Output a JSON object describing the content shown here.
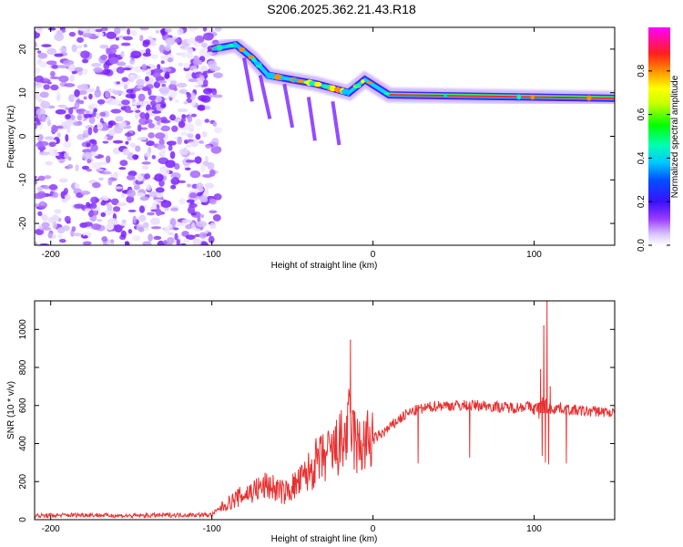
{
  "title": "S206.2025.362.21.43.R18",
  "chart_data": [
    {
      "type": "heatmap",
      "name": "spectrogram",
      "xlabel": "Height of straight line (km)",
      "ylabel": "Frequency (Hz)",
      "xlim": [
        -210,
        150
      ],
      "ylim": [
        -25,
        25
      ],
      "xticks": [
        -200,
        -100,
        0,
        100
      ],
      "yticks": [
        -20,
        -10,
        0,
        10,
        20
      ],
      "colorbar": {
        "label": "Normalized spectral amplitude",
        "range": [
          0.0,
          1.0
        ],
        "ticks": [
          "0.0",
          "0.2",
          "0.4",
          "0.6",
          "0.8"
        ]
      },
      "features": {
        "noise_region_x": [
          -210,
          -100
        ],
        "signal_trace": [
          {
            "x": -100,
            "y": 20
          },
          {
            "x": -85,
            "y": 21
          },
          {
            "x": -75,
            "y": 18
          },
          {
            "x": -65,
            "y": 14
          },
          {
            "x": -50,
            "y": 13
          },
          {
            "x": -35,
            "y": 12
          },
          {
            "x": -25,
            "y": 11
          },
          {
            "x": -15,
            "y": 10
          },
          {
            "x": -5,
            "y": 13
          },
          {
            "x": 10,
            "y": 9.5
          },
          {
            "x": 150,
            "y": 8.7
          }
        ]
      }
    },
    {
      "type": "line",
      "name": "snr",
      "xlabel": "Height of straight line (km)",
      "ylabel": "SNR (10 * v/v)",
      "xlim": [
        -210,
        150
      ],
      "ylim": [
        0,
        1150
      ],
      "xticks": [
        -200,
        -100,
        0,
        100
      ],
      "yticks": [
        0,
        200,
        400,
        600,
        800,
        1000
      ],
      "color": "#e83030",
      "series": [
        {
          "name": "SNR",
          "x": [
            -210,
            -180,
            -150,
            -120,
            -100,
            -95,
            -85,
            -75,
            -65,
            -55,
            -45,
            -35,
            -25,
            -18,
            -14,
            -10,
            -5,
            0,
            5,
            10,
            15,
            20,
            25,
            30,
            35,
            40,
            45,
            50,
            60,
            70,
            80,
            90,
            95,
            100,
            104,
            106,
            108,
            110,
            115,
            120,
            130,
            140,
            150
          ],
          "values": [
            20,
            25,
            20,
            25,
            25,
            60,
            110,
            150,
            180,
            140,
            200,
            300,
            350,
            420,
            500,
            380,
            400,
            420,
            450,
            480,
            520,
            550,
            570,
            580,
            590,
            600,
            600,
            600,
            600,
            600,
            590,
            590,
            600,
            580,
            610,
            620,
            600,
            580,
            590,
            580,
            570,
            570,
            560
          ]
        }
      ],
      "spikes": [
        {
          "x": -14,
          "y": 945
        },
        {
          "x": 28,
          "y": 305
        },
        {
          "x": 60,
          "y": 335
        },
        {
          "x": 103,
          "y": 540
        },
        {
          "x": 104,
          "y": 790
        },
        {
          "x": 105,
          "y": 345
        },
        {
          "x": 106,
          "y": 1020
        },
        {
          "x": 107,
          "y": 310
        },
        {
          "x": 108,
          "y": 1150
        },
        {
          "x": 109,
          "y": 300
        },
        {
          "x": 110,
          "y": 700
        },
        {
          "x": 120,
          "y": 305
        }
      ]
    }
  ]
}
